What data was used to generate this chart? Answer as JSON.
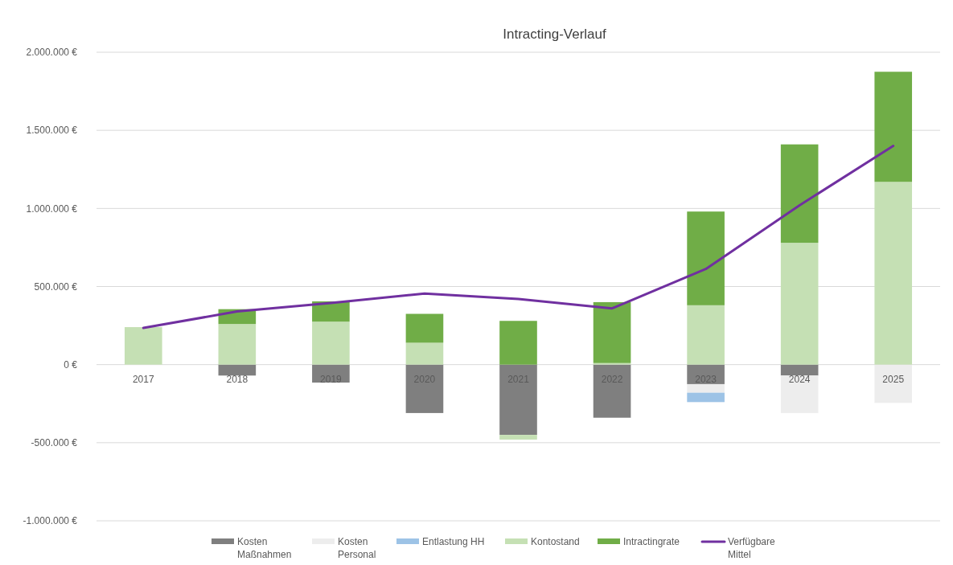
{
  "chart_data": {
    "type": "bar",
    "title": "Intracting-Verlauf",
    "stacked": true,
    "grid": "y",
    "legend": "bottom",
    "categories": [
      "2017",
      "2018",
      "2019",
      "2020",
      "2021",
      "2022",
      "2023",
      "2024",
      "2025"
    ],
    "ylim": [
      -1000000,
      2000000
    ],
    "yticks": [
      {
        "value": -1000000,
        "label": "-1.000.000 €"
      },
      {
        "value": -500000,
        "label": "-500.000 €"
      },
      {
        "value": 0,
        "label": "0 €"
      },
      {
        "value": 500000,
        "label": "500.000 €"
      },
      {
        "value": 1000000,
        "label": "1.000.000 €"
      },
      {
        "value": 1500000,
        "label": "1.500.000 €"
      },
      {
        "value": 2000000,
        "label": "2.000.000 €"
      }
    ],
    "series": [
      {
        "name": "Kosten Maßnahmen",
        "color": "#7f7f7f",
        "values": [
          0,
          -70000,
          -115000,
          -310000,
          -450000,
          -340000,
          -125000,
          -70000,
          0
        ]
      },
      {
        "name": "Kosten Personal",
        "color": "#ededed",
        "values": [
          0,
          0,
          0,
          0,
          0,
          0,
          -55000,
          -240000,
          -245000
        ]
      },
      {
        "name": "Entlastung HH",
        "color": "#9dc3e6",
        "values": [
          0,
          0,
          0,
          0,
          0,
          0,
          -60000,
          0,
          0
        ]
      },
      {
        "name": "Kontostand",
        "color": "#c5e0b4",
        "values": [
          240000,
          260000,
          275000,
          140000,
          -30000,
          10000,
          380000,
          780000,
          1170000
        ]
      },
      {
        "name": "Intractingrate",
        "color": "#70ad47",
        "values": [
          0,
          95000,
          130000,
          185000,
          280000,
          390000,
          600000,
          630000,
          705000
        ]
      },
      {
        "name": "Verfügbare Mittel",
        "type": "line",
        "color": "#7030a0",
        "values": [
          235000,
          340000,
          395000,
          455000,
          420000,
          360000,
          612000,
          1020000,
          1400000
        ]
      }
    ]
  }
}
